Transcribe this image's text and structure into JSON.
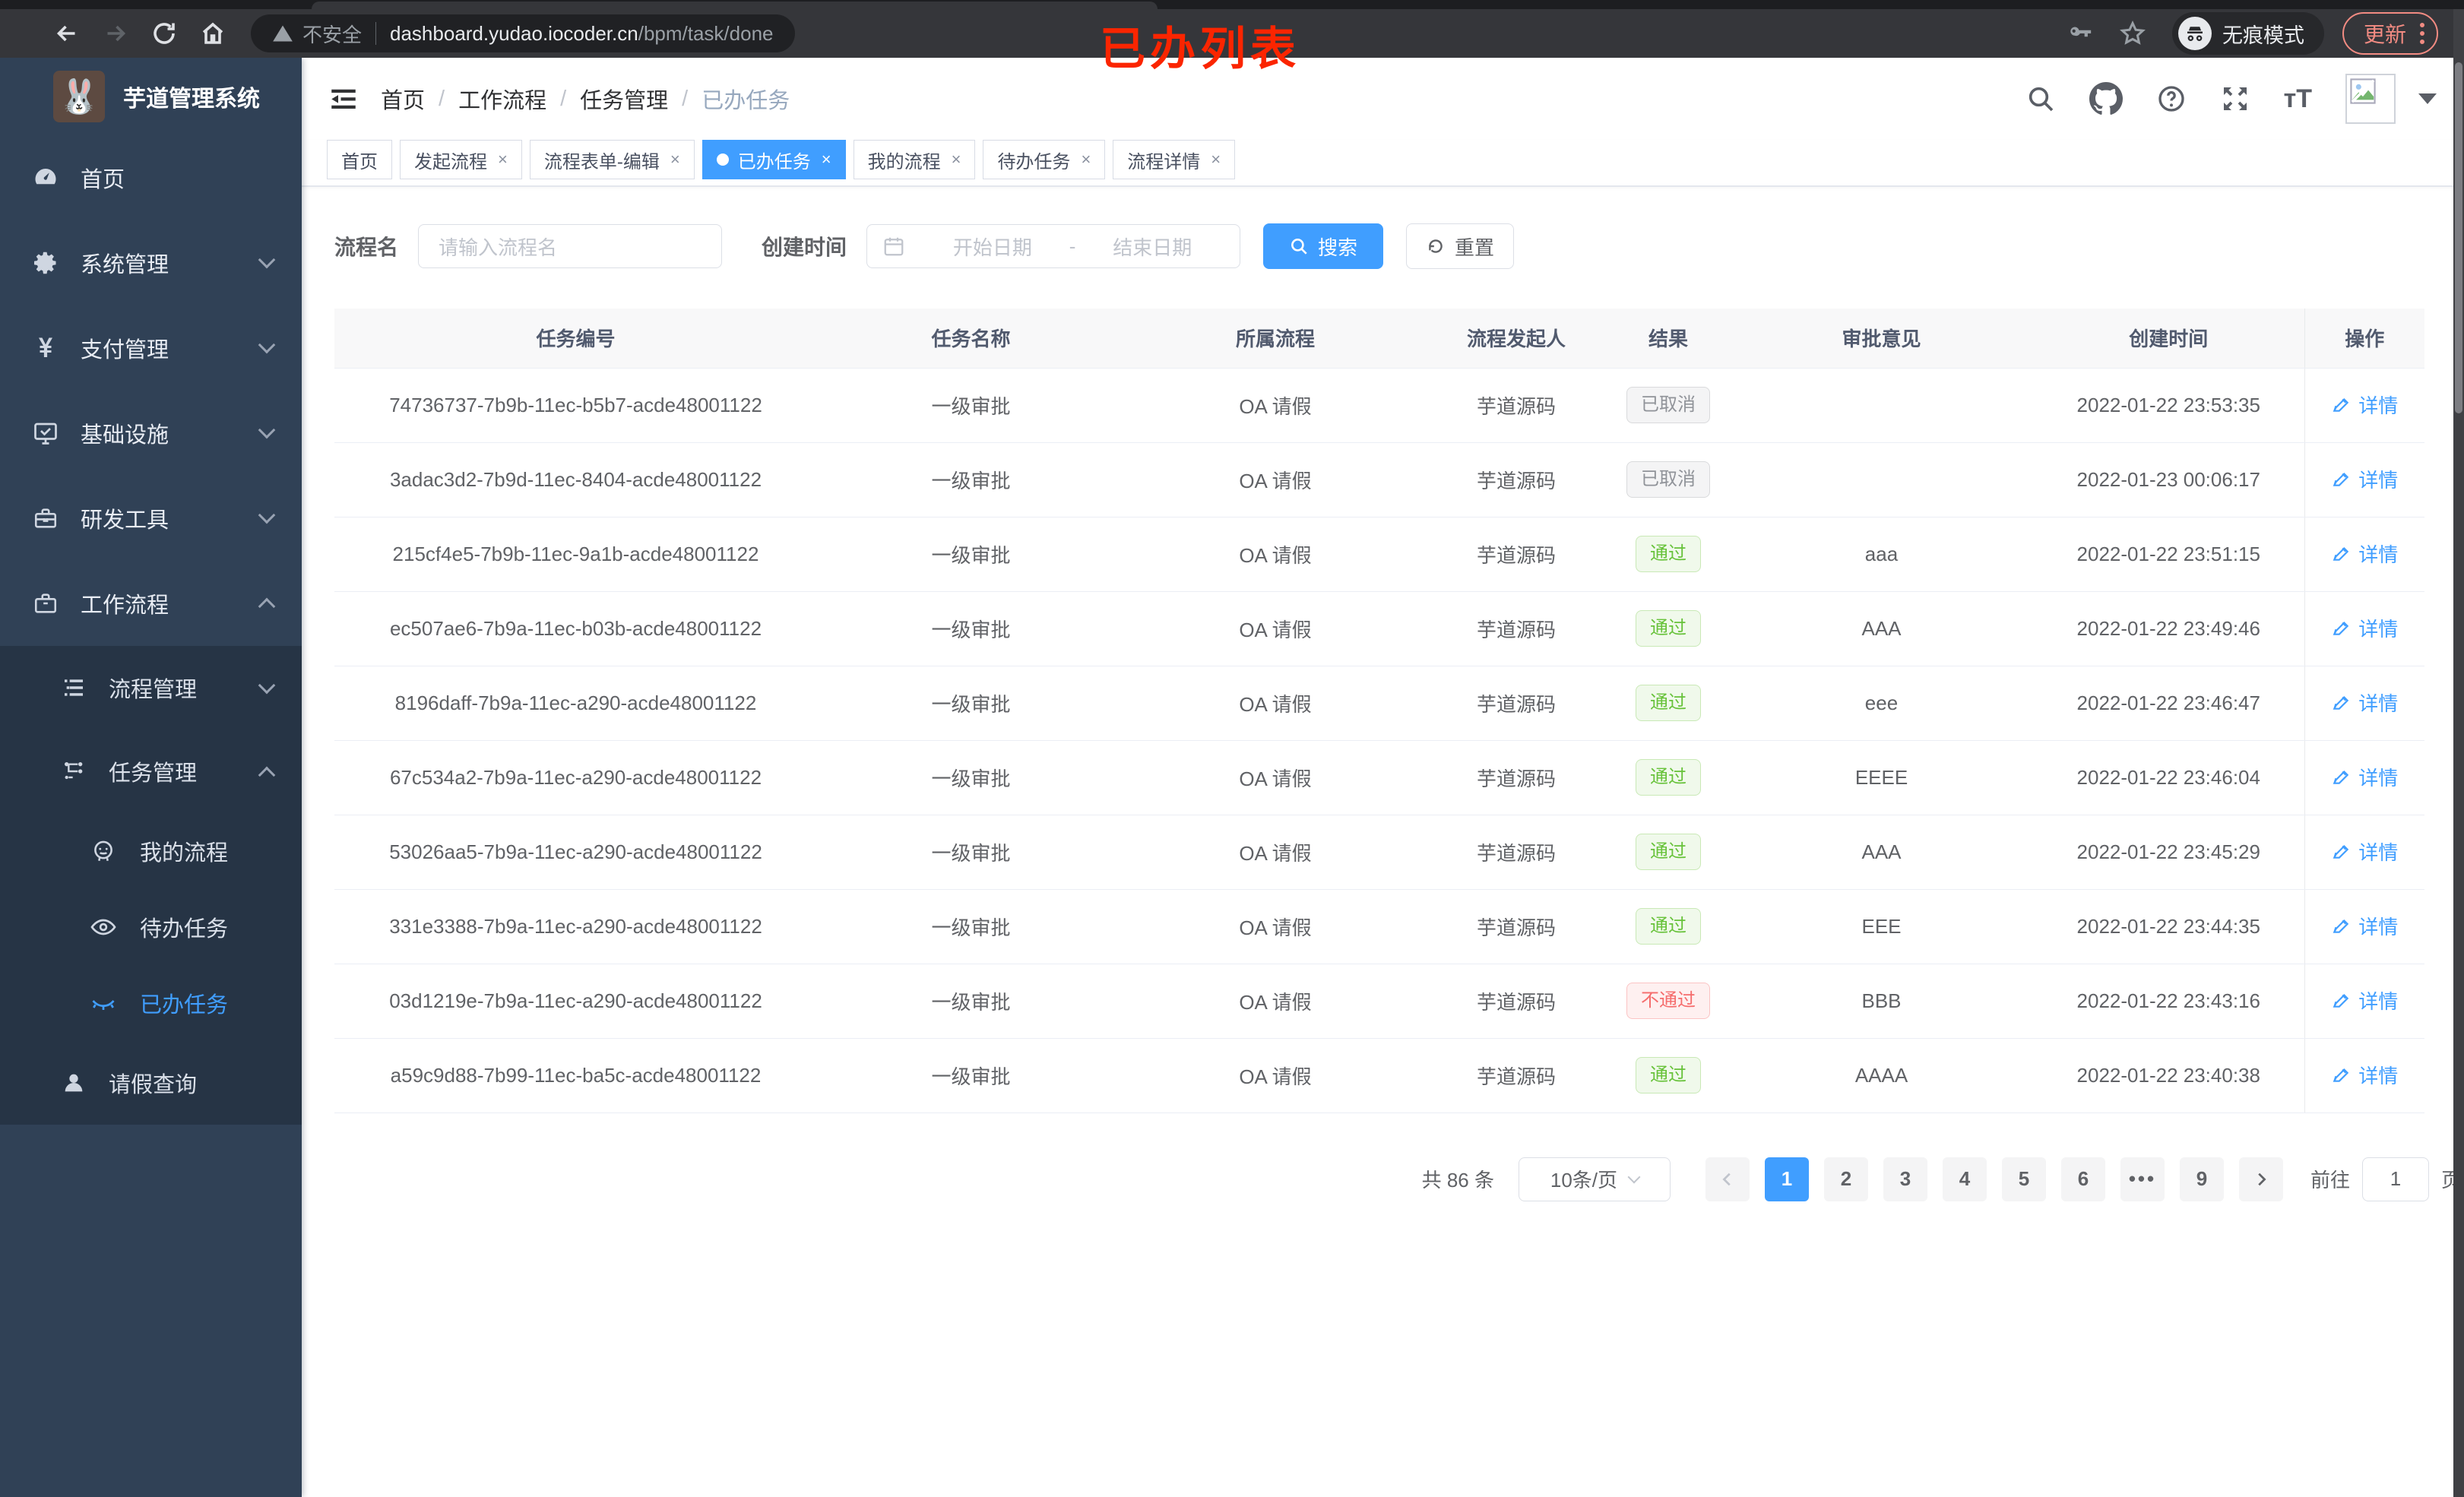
{
  "colors": {
    "accent": "#409eff",
    "success": "#67c23a",
    "danger": "#f56c6c",
    "info": "#909399",
    "annotation_red": "#fb2500",
    "sidebar_bg": "#304156",
    "submenu_bg": "#263445"
  },
  "browser": {
    "security_label": "不安全",
    "url_domain": "dashboard.yudao.iocoder.cn",
    "url_path": "/bpm/task/done",
    "incognito_label": "无痕模式",
    "update_label": "更新"
  },
  "annotation": {
    "text": "已办列表"
  },
  "sidebar": {
    "title": "芋道管理系统",
    "items": [
      {
        "label": "首页",
        "icon": "dashboard-icon",
        "level": 1,
        "chevron": "",
        "active": false
      },
      {
        "label": "系统管理",
        "icon": "gear-icon",
        "level": 1,
        "chevron": "down",
        "active": false
      },
      {
        "label": "支付管理",
        "icon": "yen-icon",
        "level": 1,
        "chevron": "down",
        "active": false
      },
      {
        "label": "基础设施",
        "icon": "monitor-icon",
        "level": 1,
        "chevron": "down",
        "active": false
      },
      {
        "label": "研发工具",
        "icon": "toolbox-icon",
        "level": 1,
        "chevron": "down",
        "active": false
      },
      {
        "label": "工作流程",
        "icon": "briefcase-icon",
        "level": 1,
        "chevron": "up",
        "active": false
      },
      {
        "label": "流程管理",
        "icon": "tree-icon",
        "level": 2,
        "chevron": "down",
        "active": false
      },
      {
        "label": "任务管理",
        "icon": "flow-icon",
        "level": 2,
        "chevron": "up",
        "active": false
      },
      {
        "label": "我的流程",
        "icon": "face-icon",
        "level": 3,
        "chevron": "",
        "active": false
      },
      {
        "label": "待办任务",
        "icon": "eye-icon",
        "level": 3,
        "chevron": "",
        "active": false
      },
      {
        "label": "已办任务",
        "icon": "eye-closed-icon",
        "level": 3,
        "chevron": "",
        "active": true
      },
      {
        "label": "请假查询",
        "icon": "user-icon",
        "level": 2,
        "chevron": "",
        "active": false
      }
    ]
  },
  "header": {
    "breadcrumb": [
      "首页",
      "工作流程",
      "任务管理",
      "已办任务"
    ]
  },
  "tabs": [
    {
      "label": "首页",
      "closable": false,
      "active": false
    },
    {
      "label": "发起流程",
      "closable": true,
      "active": false
    },
    {
      "label": "流程表单-编辑",
      "closable": true,
      "active": false
    },
    {
      "label": "已办任务",
      "closable": true,
      "active": true
    },
    {
      "label": "我的流程",
      "closable": true,
      "active": false
    },
    {
      "label": "待办任务",
      "closable": true,
      "active": false
    },
    {
      "label": "流程详情",
      "closable": true,
      "active": false
    }
  ],
  "filters": {
    "name_label": "流程名",
    "name_placeholder": "请输入流程名",
    "time_label": "创建时间",
    "start_placeholder": "开始日期",
    "range_separator": "-",
    "end_placeholder": "结束日期",
    "search_label": "搜索",
    "reset_label": "重置"
  },
  "table": {
    "columns": [
      "任务编号",
      "任务名称",
      "所属流程",
      "流程发起人",
      "结果",
      "审批意见",
      "创建时间",
      "操作"
    ],
    "action_label": "详情",
    "rows": [
      {
        "id": "74736737-7b9b-11ec-b5b7-acde48001122",
        "name": "一级审批",
        "flow": "OA 请假",
        "initiator": "芋道源码",
        "result": "已取消",
        "result_type": "info",
        "comment": "",
        "time": "2022-01-22 23:53:35"
      },
      {
        "id": "3adac3d2-7b9d-11ec-8404-acde48001122",
        "name": "一级审批",
        "flow": "OA 请假",
        "initiator": "芋道源码",
        "result": "已取消",
        "result_type": "info",
        "comment": "",
        "time": "2022-01-23 00:06:17"
      },
      {
        "id": "215cf4e5-7b9b-11ec-9a1b-acde48001122",
        "name": "一级审批",
        "flow": "OA 请假",
        "initiator": "芋道源码",
        "result": "通过",
        "result_type": "success",
        "comment": "aaa",
        "time": "2022-01-22 23:51:15"
      },
      {
        "id": "ec507ae6-7b9a-11ec-b03b-acde48001122",
        "name": "一级审批",
        "flow": "OA 请假",
        "initiator": "芋道源码",
        "result": "通过",
        "result_type": "success",
        "comment": "AAA",
        "time": "2022-01-22 23:49:46"
      },
      {
        "id": "8196daff-7b9a-11ec-a290-acde48001122",
        "name": "一级审批",
        "flow": "OA 请假",
        "initiator": "芋道源码",
        "result": "通过",
        "result_type": "success",
        "comment": "eee",
        "time": "2022-01-22 23:46:47"
      },
      {
        "id": "67c534a2-7b9a-11ec-a290-acde48001122",
        "name": "一级审批",
        "flow": "OA 请假",
        "initiator": "芋道源码",
        "result": "通过",
        "result_type": "success",
        "comment": "EEEE",
        "time": "2022-01-22 23:46:04"
      },
      {
        "id": "53026aa5-7b9a-11ec-a290-acde48001122",
        "name": "一级审批",
        "flow": "OA 请假",
        "initiator": "芋道源码",
        "result": "通过",
        "result_type": "success",
        "comment": "AAA",
        "time": "2022-01-22 23:45:29"
      },
      {
        "id": "331e3388-7b9a-11ec-a290-acde48001122",
        "name": "一级审批",
        "flow": "OA 请假",
        "initiator": "芋道源码",
        "result": "通过",
        "result_type": "success",
        "comment": "EEE",
        "time": "2022-01-22 23:44:35"
      },
      {
        "id": "03d1219e-7b9a-11ec-a290-acde48001122",
        "name": "一级审批",
        "flow": "OA 请假",
        "initiator": "芋道源码",
        "result": "不通过",
        "result_type": "danger",
        "comment": "BBB",
        "time": "2022-01-22 23:43:16"
      },
      {
        "id": "a59c9d88-7b99-11ec-ba5c-acde48001122",
        "name": "一级审批",
        "flow": "OA 请假",
        "initiator": "芋道源码",
        "result": "通过",
        "result_type": "success",
        "comment": "AAAA",
        "time": "2022-01-22 23:40:38"
      }
    ]
  },
  "pagination": {
    "total_label": "共 86 条",
    "page_size_label": "10条/页",
    "pages": [
      "1",
      "2",
      "3",
      "4",
      "5",
      "6",
      "•••",
      "9"
    ],
    "active_page": "1",
    "goto_label": "前往",
    "goto_value": "1",
    "goto_unit": "页"
  }
}
